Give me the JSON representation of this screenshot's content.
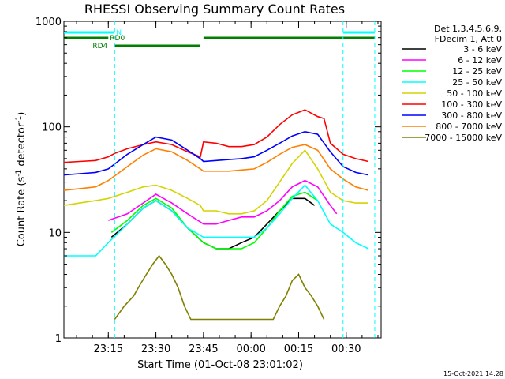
{
  "chart_data": {
    "type": "line",
    "title": "RHESSI Observing Summary Count Rates",
    "xlabel": "Start Time (01-Oct-08 23:01:02)",
    "ylabel_main": "Count Rate (s",
    "ylabel_sup1": "-1",
    "ylabel_mid": " detector",
    "ylabel_sup2": "-1",
    "ylabel_end": ")",
    "y_scale": "log",
    "ylim": [
      1,
      1000
    ],
    "xlim": [
      0,
      100
    ],
    "x_ticks": [
      {
        "t": 14,
        "label": "23:15"
      },
      {
        "t": 29,
        "label": "23:30"
      },
      {
        "t": 44,
        "label": "23:45"
      },
      {
        "t": 59,
        "label": "00:00"
      },
      {
        "t": 74,
        "label": "00:15"
      },
      {
        "t": 89,
        "label": "00:30"
      }
    ],
    "y_ticks": [
      {
        "v": 1,
        "label": "1"
      },
      {
        "v": 10,
        "label": "10"
      },
      {
        "v": 100,
        "label": "100"
      },
      {
        "v": 1000,
        "label": "1000"
      }
    ],
    "legend_header": [
      "Det 1,3,4,5,6,9,",
      "FDecim 1, Att 0"
    ],
    "footer": "15-Oct-2021 14:28",
    "series": [
      {
        "name": "3 - 6 keV",
        "color": "#000000",
        "x": [
          15,
          20,
          25,
          29,
          34,
          39,
          44,
          48,
          52,
          56,
          60,
          64,
          68,
          72,
          76,
          79
        ],
        "y": [
          9,
          12,
          17,
          20,
          16,
          11,
          8,
          7,
          7,
          8,
          9,
          12,
          16,
          21,
          21,
          18
        ]
      },
      {
        "name": "6 - 12 keV",
        "color": "#ff00ff",
        "x": [
          14,
          20,
          25,
          29,
          34,
          39,
          44,
          48,
          52,
          56,
          60,
          64,
          68,
          72,
          76,
          80,
          84,
          86
        ],
        "y": [
          13,
          15,
          19,
          23,
          19,
          15,
          12,
          12,
          13,
          14,
          14,
          16,
          20,
          27,
          31,
          27,
          18,
          15
        ]
      },
      {
        "name": "12 - 25 keV",
        "color": "#00ff00",
        "x": [
          15,
          20,
          25,
          29,
          34,
          39,
          44,
          48,
          52,
          56,
          60,
          64,
          68,
          72,
          76,
          80
        ],
        "y": [
          10,
          13,
          18,
          21,
          17,
          11,
          8,
          7,
          7,
          7,
          8,
          11,
          16,
          22,
          24,
          20
        ]
      },
      {
        "name": "25 - 50 keV",
        "color": "#00ffff",
        "x": [
          0,
          5,
          10,
          14,
          20,
          25,
          29,
          34,
          39,
          44,
          48,
          52,
          56,
          60,
          64,
          68,
          72,
          76,
          80,
          84,
          88,
          92,
          96
        ],
        "y": [
          6,
          6,
          6,
          8,
          12,
          17,
          20,
          16,
          11,
          9,
          9,
          9,
          9,
          9,
          11,
          15,
          21,
          28,
          20,
          12,
          10,
          8,
          7
        ]
      },
      {
        "name": "50 - 100 keV",
        "color": "#d4d400",
        "x": [
          0,
          5,
          10,
          14,
          20,
          25,
          29,
          34,
          39,
          43,
          44,
          48,
          52,
          56,
          60,
          64,
          68,
          72,
          76,
          80,
          84,
          88,
          92,
          96
        ],
        "y": [
          18,
          19,
          20,
          21,
          24,
          27,
          28,
          25,
          21,
          18,
          16,
          16,
          15,
          15,
          16,
          20,
          30,
          45,
          60,
          40,
          24,
          20,
          19,
          19
        ]
      },
      {
        "name": "100 - 300 keV",
        "color": "#ff0000",
        "x": [
          0,
          5,
          10,
          14,
          16,
          20,
          25,
          29,
          34,
          39,
          43,
          44,
          48,
          52,
          56,
          60,
          64,
          68,
          72,
          76,
          80,
          82,
          84,
          88,
          92,
          96
        ],
        "y": [
          46,
          47,
          48,
          52,
          56,
          62,
          68,
          72,
          68,
          58,
          52,
          72,
          70,
          65,
          65,
          68,
          80,
          105,
          130,
          145,
          125,
          120,
          70,
          55,
          50,
          47
        ]
      },
      {
        "name": "300 - 800 keV",
        "color": "#0000ff",
        "x": [
          0,
          5,
          10,
          14,
          20,
          25,
          29,
          34,
          39,
          43,
          44,
          48,
          52,
          56,
          60,
          64,
          68,
          72,
          76,
          80,
          84,
          88,
          92,
          96
        ],
        "y": [
          35,
          36,
          37,
          40,
          55,
          68,
          80,
          75,
          60,
          50,
          47,
          48,
          49,
          50,
          52,
          60,
          70,
          82,
          90,
          85,
          58,
          42,
          37,
          35
        ]
      },
      {
        "name": "800 - 7000 keV",
        "color": "#ff8000",
        "x": [
          0,
          5,
          10,
          14,
          20,
          25,
          29,
          34,
          39,
          43,
          44,
          48,
          52,
          56,
          60,
          64,
          68,
          72,
          76,
          80,
          84,
          88,
          92,
          96
        ],
        "y": [
          25,
          26,
          27,
          31,
          42,
          54,
          62,
          58,
          48,
          40,
          38,
          38,
          38,
          39,
          40,
          46,
          55,
          64,
          68,
          60,
          40,
          32,
          27,
          25
        ]
      },
      {
        "name": "7000 - 15000 keV",
        "color": "#808000",
        "x": [
          16,
          19,
          22,
          24,
          26,
          28,
          30,
          32,
          34,
          36,
          38,
          40,
          66,
          68,
          70,
          72,
          74,
          76,
          78,
          80,
          82
        ],
        "y": [
          1.5,
          2,
          2.5,
          3.2,
          4,
          5,
          6,
          5,
          4,
          3,
          2,
          1.5,
          1.5,
          2,
          2.5,
          3.5,
          4,
          3,
          2.5,
          2,
          1.5
        ]
      }
    ],
    "annotations": [
      {
        "label": "N",
        "color": "#00ffff",
        "segments": [
          [
            0,
            16
          ],
          [
            88,
            98
          ]
        ],
        "level": 1
      },
      {
        "label": "RD0",
        "color": "#007f00",
        "segments": [
          [
            0,
            14
          ],
          [
            44,
            98
          ]
        ],
        "level": 2
      },
      {
        "label": "RD4",
        "color": "#007f00",
        "segments": [
          [
            16,
            43
          ]
        ],
        "level": 3
      }
    ],
    "cyan_vlines": [
      16,
      88,
      98
    ]
  }
}
